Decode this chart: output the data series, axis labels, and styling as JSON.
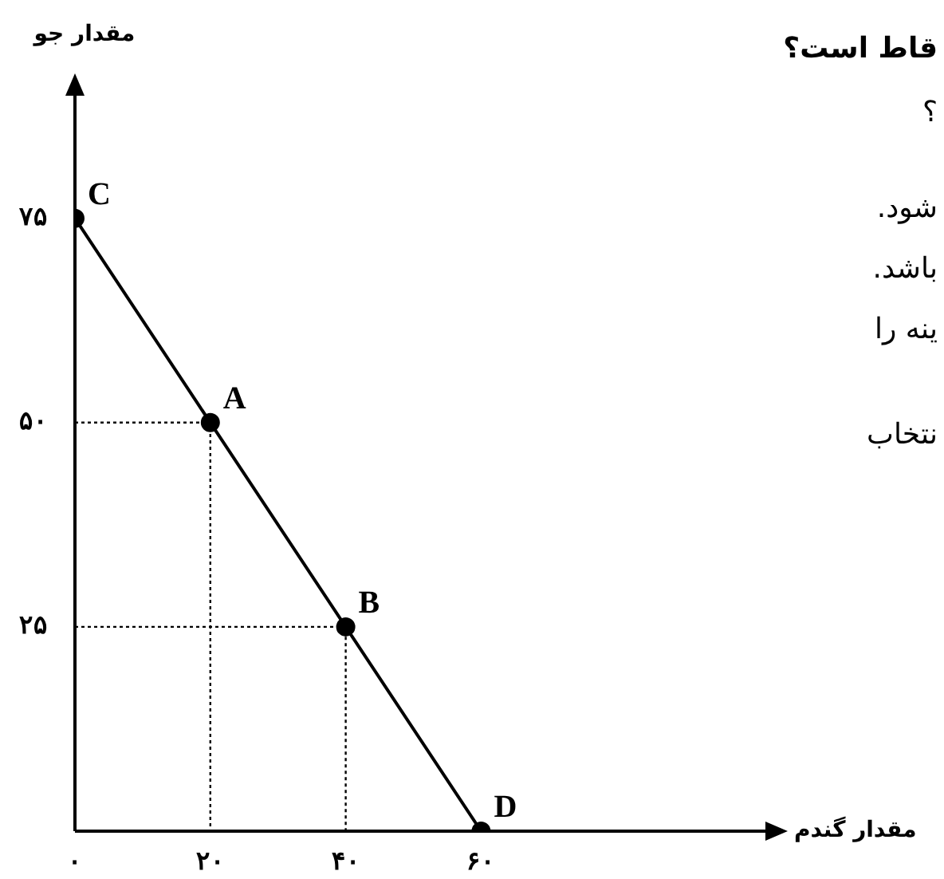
{
  "chart_data": {
    "type": "line",
    "xlabel": "مقدار گندم",
    "ylabel": "مقدار جو",
    "xlim": [
      0,
      102
    ],
    "ylim": [
      0,
      90
    ],
    "xticks": [
      {
        "value": 0,
        "label": "۰"
      },
      {
        "value": 20,
        "label": "۲۰"
      },
      {
        "value": 40,
        "label": "۴۰"
      },
      {
        "value": 60,
        "label": "۶۰"
      }
    ],
    "yticks": [
      {
        "value": 25,
        "label": "۲۵"
      },
      {
        "value": 50,
        "label": "۵۰"
      },
      {
        "value": 75,
        "label": "۷۵"
      }
    ],
    "grid": false,
    "legend": false,
    "series": [
      {
        "color": "#000000",
        "x": [
          0,
          20,
          40,
          60
        ],
        "values": [
          75,
          50,
          25,
          0
        ],
        "marker": "circle",
        "line_style": "solid"
      },
      {
        "color": "#000000",
        "x": [
          0,
          20,
          20
        ],
        "values": [
          50,
          50,
          0
        ],
        "marker": "none",
        "line_style": "dotted"
      },
      {
        "color": "#000000",
        "x": [
          0,
          40,
          40
        ],
        "values": [
          25,
          25,
          0
        ],
        "marker": "none",
        "line_style": "dotted"
      }
    ],
    "annotations": [
      {
        "text": "C",
        "x": 0,
        "y": 75
      },
      {
        "text": "A",
        "x": 20,
        "y": 50
      },
      {
        "text": "B",
        "x": 40,
        "y": 25
      },
      {
        "text": "D",
        "x": 60,
        "y": 0
      },
      "قاط است؟",
      "؟",
      "شود.",
      "باشد.",
      "ینه را",
      "نتخاب"
    ]
  }
}
